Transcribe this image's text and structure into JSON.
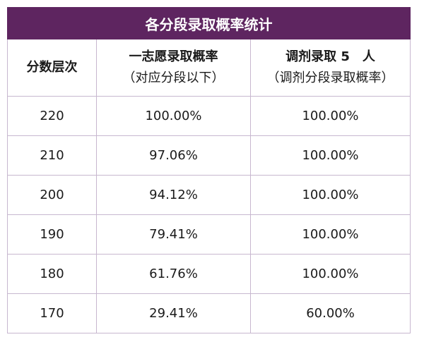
{
  "table": {
    "title": "各分段录取概率统计",
    "headers": [
      {
        "line1": "分数层次",
        "line2": ""
      },
      {
        "line1": "一志愿录取概率",
        "line2": "（对应分段以下）"
      },
      {
        "line1": "调剂录取 5　人",
        "line2": "（调剂分段录取概率）"
      }
    ],
    "rows": [
      {
        "score": "220",
        "first_choice": "100.00%",
        "adjustment": "100.00%"
      },
      {
        "score": "210",
        "first_choice": "97.06%",
        "adjustment": "100.00%"
      },
      {
        "score": "200",
        "first_choice": "94.12%",
        "adjustment": "100.00%"
      },
      {
        "score": "190",
        "first_choice": "79.41%",
        "adjustment": "100.00%"
      },
      {
        "score": "180",
        "first_choice": "61.76%",
        "adjustment": "100.00%"
      },
      {
        "score": "170",
        "first_choice": "29.41%",
        "adjustment": "60.00%"
      }
    ]
  },
  "colors": {
    "title_bg": "#5e2560",
    "title_text": "#ffffff",
    "border": "#c7b7cf"
  }
}
